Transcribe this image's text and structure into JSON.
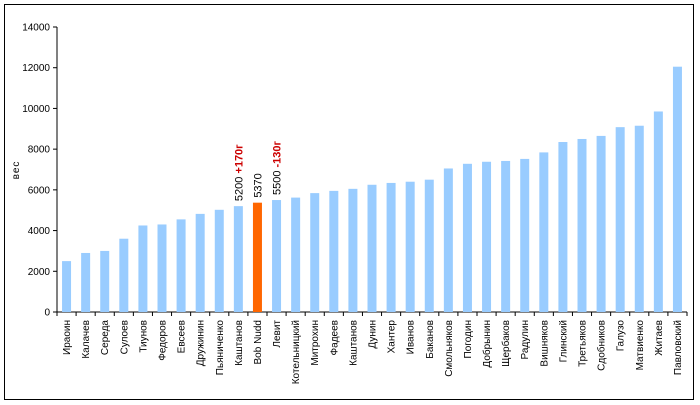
{
  "chart_data": {
    "type": "bar",
    "ylabel": "вес",
    "xlabel": "",
    "title": "",
    "ylim": [
      0,
      14000
    ],
    "yticks": [
      0,
      2000,
      4000,
      6000,
      8000,
      10000,
      12000,
      14000
    ],
    "grid": false,
    "bar_color": "#99ccff",
    "highlight_color": "#ff6600",
    "highlight_index": 10,
    "categories": [
      "Ираоин",
      "Калачев",
      "Середа",
      "Сулоев",
      "Тиунов",
      "Федоров",
      "Евсеев",
      "Дружинин",
      "Пьяниченко",
      "Каштанов",
      "Bob Nudd",
      "Левит",
      "Котельницкий",
      "Митрохин",
      "Фадеев",
      "Каштанов",
      "Дунин",
      "Хантер",
      "Иванов",
      "Баканов",
      "Смольняков",
      "Погодин",
      "Добрынин",
      "Щербаков",
      "Радулин",
      "Вишняков",
      "Глинский",
      "Третьяков",
      "Сдобников",
      "Галузо",
      "Матвиенко",
      "Житаев",
      "Павловский"
    ],
    "values": [
      2500,
      2900,
      3000,
      3600,
      4250,
      4300,
      4550,
      4820,
      5020,
      5200,
      5370,
      5500,
      5620,
      5840,
      5950,
      6050,
      6250,
      6340,
      6400,
      6500,
      7050,
      7280,
      7380,
      7420,
      7520,
      7840,
      8350,
      8500,
      8650,
      9080,
      9150,
      9850,
      12050
    ],
    "annotations": [
      {
        "category_index": 9,
        "value_text": "5200",
        "delta_text": "+170г"
      },
      {
        "category_index": 10,
        "value_text": "5370",
        "delta_text": ""
      },
      {
        "category_index": 11,
        "value_text": "5500",
        "delta_text": "-130г"
      }
    ]
  }
}
